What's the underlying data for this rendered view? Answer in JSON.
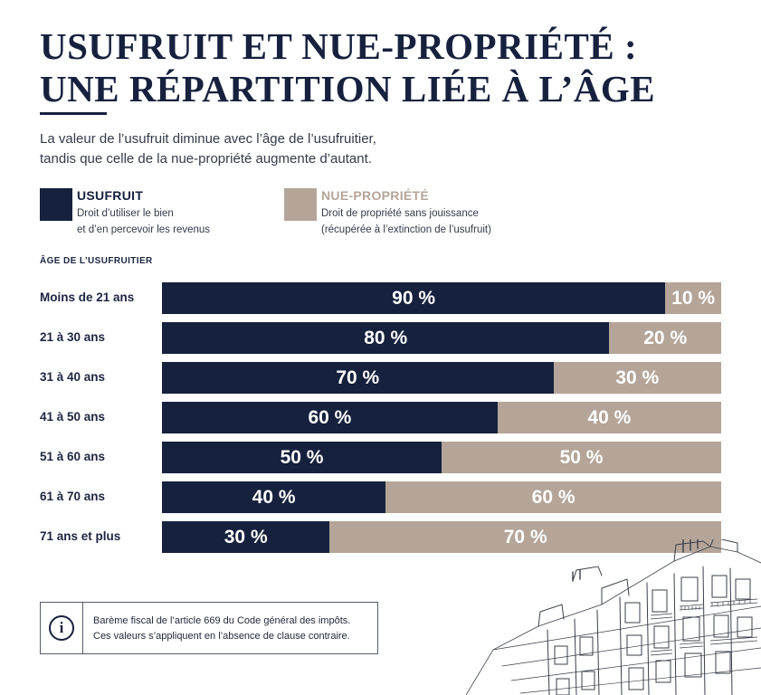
{
  "header": {
    "title_line1": "USUFRUIT ET NUE-PROPRIÉTÉ :",
    "title_line2": "UNE RÉPARTITION LIÉE À L’ÂGE",
    "subtitle_line1": "La valeur de l’usufruit diminue avec l’âge de l’usufruitier,",
    "subtitle_line2": "tandis que celle de la nue-propriété augmente d’autant."
  },
  "legend": {
    "usufruit": {
      "title": "USUFRUIT",
      "desc_line1": "Droit d’utiliser le bien",
      "desc_line2": "et d’en percevoir les revenus",
      "color": "#16213e"
    },
    "nue": {
      "title": "NUE-PROPRIÉTÉ",
      "desc_line1": "Droit de propriété sans jouissance",
      "desc_line2": "(récupérée à l’extinction de l’usufruit)",
      "color": "#b4a598"
    }
  },
  "chart_data": {
    "type": "bar",
    "orientation": "horizontal",
    "stacked": true,
    "ylabel": "ÂGE DE L’USUFRUITIER",
    "categories": [
      "Moins de 21 ans",
      "21 à 30 ans",
      "31 à 40 ans",
      "41 à 50 ans",
      "51 à 60 ans",
      "61 à 70 ans",
      "71 ans et plus"
    ],
    "series": [
      {
        "name": "USUFRUIT",
        "values": [
          90,
          80,
          70,
          60,
          50,
          40,
          30
        ],
        "labels": [
          "90 %",
          "80 %",
          "70 %",
          "60 %",
          "50 %",
          "40 %",
          "30 %"
        ],
        "color": "#16213e"
      },
      {
        "name": "NUE-PROPRIÉTÉ",
        "values": [
          10,
          20,
          30,
          40,
          50,
          60,
          70
        ],
        "labels": [
          "10 %",
          "20 %",
          "30 %",
          "40 %",
          "50 %",
          "60 %",
          "70 %"
        ],
        "color": "#b4a598"
      }
    ],
    "xlim": [
      0,
      100
    ],
    "grid": false,
    "legend_position": "top"
  },
  "note": {
    "icon": "info-icon",
    "line1": "Barème fiscal de l’article 669 du Code général des impôts.",
    "line2": "Ces valeurs s’appliquent en l’absence de clause contraire."
  },
  "illustration": "building-illustration"
}
